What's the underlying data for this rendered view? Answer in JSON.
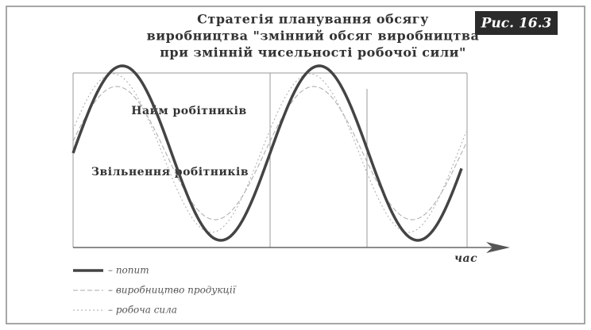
{
  "figure_label": "Рис. 16.3",
  "title": [
    "Стратегія планування обсягу",
    "виробництва \"змінний обсяг виробництва",
    "при змінній чисельності робочої сили\""
  ],
  "annotations": {
    "hiring": "Найм робітників",
    "layoffs": "Звільнення робітників",
    "x_axis": "час"
  },
  "legend": [
    "– попит",
    "– виробництво продукції",
    "– робоча сила"
  ]
}
